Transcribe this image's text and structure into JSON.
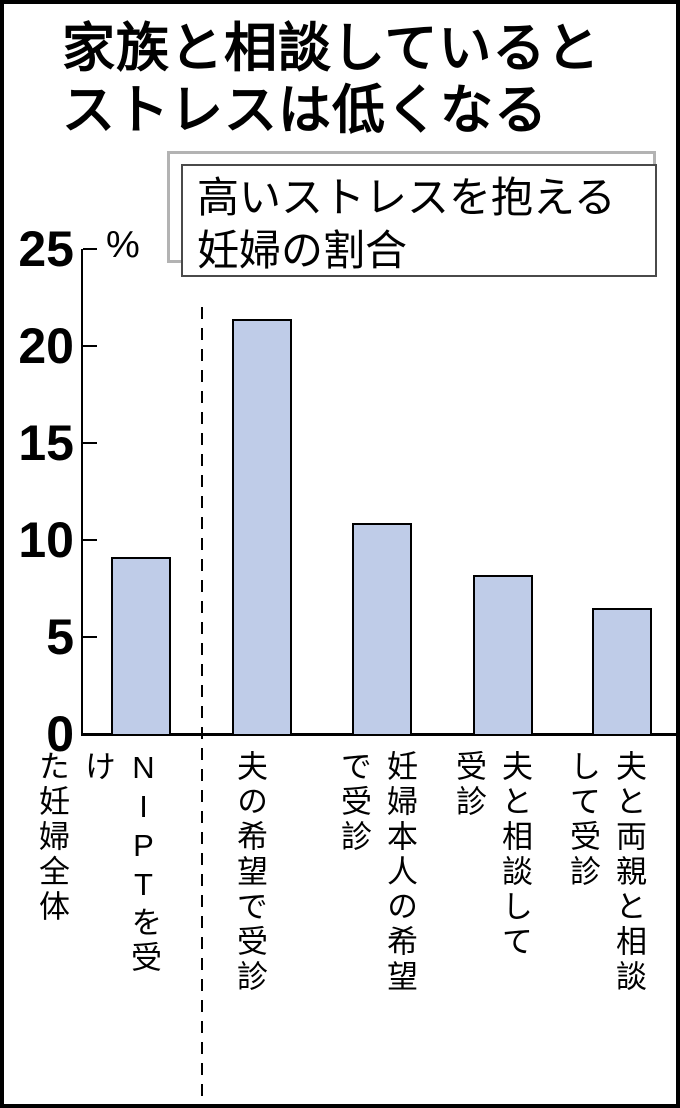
{
  "title": {
    "line1": "家族と相談していると",
    "line2": "ストレスは低くなる"
  },
  "subtitle_box": {
    "line1": "高いストレスを抱える",
    "line2": "妊婦の割合"
  },
  "axis": {
    "unit_label": "%"
  },
  "chart_data": {
    "type": "bar",
    "title": "家族と相談しているとストレスは低くなる",
    "subtitle": "高いストレスを抱える妊婦の割合",
    "categories": [
      "NIPTを受けた妊婦全体",
      "夫の希望で受診",
      "妊婦本人の希望で受診",
      "夫と相談して受診",
      "夫と両親と相談して受診"
    ],
    "categories_display": [
      "NIPTを受け\nた妊婦全体",
      "夫の希望で受診",
      "妊婦本人の希望\nで受診",
      "夫と相談して\n受診",
      "夫と両親と相談\nして受診"
    ],
    "values": [
      9.1,
      21.4,
      10.9,
      8.2,
      6.5
    ],
    "unit": "%",
    "ylabel": "%",
    "ylim": [
      0,
      25
    ],
    "yticks": [
      0,
      5,
      10,
      15,
      20,
      25
    ],
    "grid": false,
    "legend": "none",
    "bar_color": "#bfcce8",
    "bar_border_color": "#000000",
    "separator_after_first_bar": true
  }
}
